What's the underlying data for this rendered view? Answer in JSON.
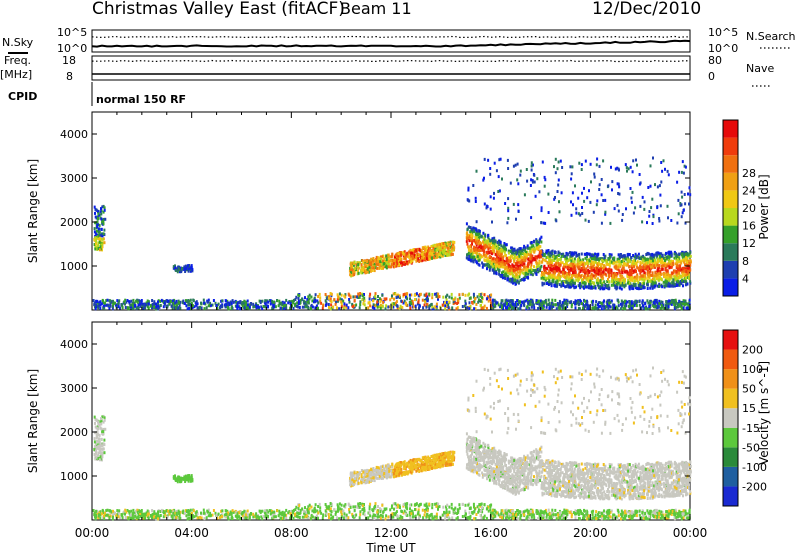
{
  "header": {
    "title": "Christmas Valley East (fitACF)",
    "beam": "Beam 11",
    "date": "12/Dec/2010"
  },
  "chart_data": [
    {
      "type": "line",
      "name": "noise-search-panel",
      "left_label": "N.Sky",
      "right_label": "N.Search",
      "left_ticks": [
        "10^5",
        "10^0"
      ],
      "right_ticks": [
        "10^5",
        "10^0"
      ],
      "scale": "log"
    },
    {
      "type": "line",
      "name": "freq-nave-panel",
      "left_label": "Freq.",
      "left_unit": "[MHz]",
      "right_label": "Nave",
      "left_ticks": [
        "18",
        "8"
      ],
      "right_ticks": [
        "80",
        "0"
      ]
    },
    {
      "type": "text",
      "name": "cpid-panel",
      "label": "CPID",
      "program": "normal 150 RF"
    },
    {
      "type": "heatmap",
      "name": "power-panel",
      "ylabel": "Slant Range [km]",
      "ylim": [
        0,
        4500
      ],
      "yticks": [
        1000,
        2000,
        3000,
        4000
      ],
      "xlim": [
        0,
        24
      ],
      "colorbar": {
        "label": "Power [dB]",
        "ticks": [
          "4",
          "8",
          "12",
          "16",
          "20",
          "24",
          "28"
        ],
        "colors": [
          "#0a1ee6",
          "#1f3fb0",
          "#2a7a5a",
          "#35a02a",
          "#b8d81e",
          "#f0c814",
          "#f0a014",
          "#f07010",
          "#f03c0c",
          "#e60a0a"
        ]
      },
      "features": [
        {
          "t": [
            0.1,
            0.5
          ],
          "r": [
            1400,
            2400
          ],
          "level": "weak"
        },
        {
          "t": [
            10.3,
            14.5
          ],
          "r": [
            700,
            1400
          ],
          "level": "strong"
        },
        {
          "t": [
            15.0,
            24.0
          ],
          "r": [
            800,
            1800
          ],
          "level": "strong"
        },
        {
          "t": [
            0.0,
            24.0
          ],
          "r": [
            50,
            400
          ],
          "level": "moderate"
        }
      ]
    },
    {
      "type": "heatmap",
      "name": "velocity-panel",
      "ylabel": "Slant Range [km]",
      "ylim": [
        0,
        4500
      ],
      "yticks": [
        1000,
        2000,
        3000,
        4000
      ],
      "xlim": [
        0,
        24
      ],
      "xticks": [
        "00:00",
        "04:00",
        "08:00",
        "12:00",
        "16:00",
        "20:00",
        "00:00"
      ],
      "xlabel": "Time UT",
      "colorbar": {
        "label": "Velocity [m s^-1]",
        "ticks": [
          "200",
          "100",
          "50",
          "15",
          "-15",
          "-50",
          "-100",
          "-200"
        ],
        "colors": [
          "#1a2ad2",
          "#1f5fa0",
          "#2a8a3a",
          "#5cc83c",
          "#c8c8c0",
          "#f0c020",
          "#f09018",
          "#f05a10",
          "#e61010"
        ]
      }
    }
  ]
}
